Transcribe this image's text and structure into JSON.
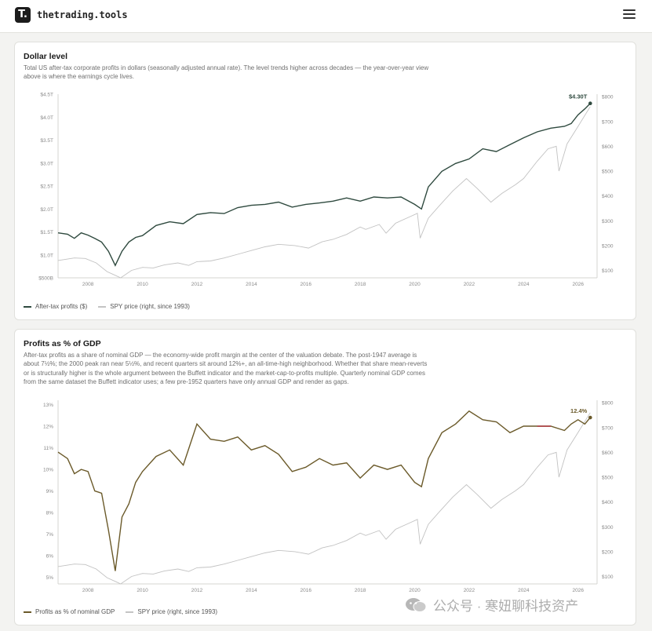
{
  "header": {
    "logo_glyph": "T.",
    "brand": "thetrading.tools",
    "menu_icon": "hamburger-menu-icon"
  },
  "colors": {
    "profits_line": "#2f4a3f",
    "gdp_line": "#6b5a2a",
    "gdp_highlight": "#b0303a",
    "spy_line": "#b8b8b8"
  },
  "chart_data": [
    {
      "type": "line",
      "title": "Dollar level",
      "subtitle": "Total US after-tax corporate profits in dollars (seasonally adjusted annual rate). The level trends higher across decades — the year-over-year view above is where the earnings cycle lives.",
      "x_ticks": [
        "2008",
        "2010",
        "2012",
        "2014",
        "2016",
        "2018",
        "2020",
        "2022",
        "2024",
        "2026"
      ],
      "xlim": [
        2006.9,
        2026.7
      ],
      "y_left_ticks": [
        "$500B",
        "$1.0T",
        "$1.5T",
        "$2.0T",
        "$2.5T",
        "$3.0T",
        "$3.5T",
        "$4.0T",
        "$4.5T"
      ],
      "y_left_values": [
        0.5,
        1.0,
        1.5,
        2.0,
        2.5,
        3.0,
        3.5,
        4.0,
        4.5
      ],
      "ylim_left": [
        0.5,
        4.5
      ],
      "y_right_ticks": [
        "$100",
        "$200",
        "$300",
        "$400",
        "$500",
        "$600",
        "$700",
        "$800"
      ],
      "y_right_values": [
        100,
        200,
        300,
        400,
        500,
        600,
        700,
        800
      ],
      "ylim_right": [
        70,
        810
      ],
      "end_label": "$4.30T",
      "legend_placement": "bottom-left",
      "series": [
        {
          "name": "After-tax profits ($)",
          "axis": "left",
          "x": [
            2006.9,
            2007.25,
            2007.5,
            2007.75,
            2008.0,
            2008.25,
            2008.5,
            2008.75,
            2009.0,
            2009.25,
            2009.5,
            2009.75,
            2010.0,
            2010.5,
            2011.0,
            2011.5,
            2012.0,
            2012.5,
            2013.0,
            2013.5,
            2014.0,
            2014.5,
            2015.0,
            2015.5,
            2016.0,
            2016.5,
            2017.0,
            2017.5,
            2018.0,
            2018.5,
            2019.0,
            2019.5,
            2020.0,
            2020.25,
            2020.5,
            2021.0,
            2021.5,
            2022.0,
            2022.5,
            2023.0,
            2023.5,
            2024.0,
            2024.5,
            2025.0,
            2025.5,
            2025.75,
            2026.0,
            2026.25,
            2026.45
          ],
          "y": [
            1.48,
            1.45,
            1.36,
            1.48,
            1.43,
            1.36,
            1.28,
            1.08,
            0.77,
            1.08,
            1.28,
            1.38,
            1.42,
            1.64,
            1.72,
            1.68,
            1.88,
            1.92,
            1.9,
            2.03,
            2.08,
            2.1,
            2.15,
            2.04,
            2.1,
            2.13,
            2.17,
            2.24,
            2.17,
            2.26,
            2.24,
            2.26,
            2.1,
            2.0,
            2.48,
            2.82,
            2.99,
            3.09,
            3.31,
            3.25,
            3.4,
            3.55,
            3.68,
            3.76,
            3.8,
            3.86,
            4.05,
            4.18,
            4.3
          ]
        },
        {
          "name": "SPY price (right, since 1993)",
          "axis": "right",
          "x": [
            2006.9,
            2007.5,
            2007.9,
            2008.3,
            2008.7,
            2009.0,
            2009.2,
            2009.6,
            2010.0,
            2010.4,
            2010.8,
            2011.3,
            2011.7,
            2012.0,
            2012.5,
            2013.0,
            2013.5,
            2014.0,
            2014.5,
            2015.0,
            2015.6,
            2016.1,
            2016.6,
            2017.0,
            2017.5,
            2018.0,
            2018.2,
            2018.7,
            2018.95,
            2019.3,
            2019.8,
            2020.1,
            2020.2,
            2020.5,
            2020.9,
            2021.4,
            2021.9,
            2022.3,
            2022.8,
            2023.2,
            2023.7,
            2024.0,
            2024.5,
            2024.9,
            2025.2,
            2025.3,
            2025.6,
            2026.0,
            2026.45
          ],
          "y": [
            140,
            150,
            148,
            130,
            95,
            80,
            70,
            100,
            112,
            110,
            122,
            130,
            120,
            135,
            138,
            150,
            165,
            180,
            195,
            205,
            200,
            190,
            215,
            225,
            245,
            275,
            265,
            285,
            250,
            290,
            315,
            330,
            230,
            310,
            360,
            420,
            470,
            430,
            375,
            410,
            445,
            470,
            540,
            590,
            600,
            500,
            610,
            680,
            760
          ]
        }
      ]
    },
    {
      "type": "line",
      "title": "Profits as % of GDP",
      "subtitle": "After-tax profits as a share of nominal GDP — the economy-wide profit margin at the center of the valuation debate. The post-1947 average is about 7½%; the 2000 peak ran near 5½%, and recent quarters sit around 12%+, an all-time-high neighborhood. Whether that share mean-reverts or is structurally higher is the whole argument between the Buffett indicator and the market-cap-to-profits multiple. Quarterly nominal GDP comes from the same dataset the Buffett indicator uses; a few pre-1952 quarters have only annual GDP and render as gaps.",
      "x_ticks": [
        "2008",
        "2010",
        "2012",
        "2014",
        "2016",
        "2018",
        "2020",
        "2022",
        "2024",
        "2026"
      ],
      "xlim": [
        2006.9,
        2026.7
      ],
      "y_left_ticks": [
        "5%",
        "6%",
        "7%",
        "8%",
        "9%",
        "10%",
        "11%",
        "12%",
        "13%"
      ],
      "y_left_values": [
        5,
        6,
        7,
        8,
        9,
        10,
        11,
        12,
        13
      ],
      "ylim_left": [
        4.7,
        13.2
      ],
      "y_right_ticks": [
        "$100",
        "$200",
        "$300",
        "$400",
        "$500",
        "$600",
        "$700",
        "$800"
      ],
      "y_right_values": [
        100,
        200,
        300,
        400,
        500,
        600,
        700,
        800
      ],
      "ylim_right": [
        70,
        810
      ],
      "end_label": "12.4%",
      "legend_placement": "bottom-left",
      "series": [
        {
          "name": "Profits as % of nominal GDP",
          "axis": "left",
          "x": [
            2006.9,
            2007.25,
            2007.5,
            2007.75,
            2008.0,
            2008.25,
            2008.5,
            2008.75,
            2009.0,
            2009.25,
            2009.5,
            2009.75,
            2010.0,
            2010.5,
            2011.0,
            2011.5,
            2012.0,
            2012.5,
            2013.0,
            2013.5,
            2014.0,
            2014.5,
            2015.0,
            2015.5,
            2016.0,
            2016.5,
            2017.0,
            2017.5,
            2018.0,
            2018.5,
            2019.0,
            2019.5,
            2020.0,
            2020.25,
            2020.5,
            2021.0,
            2021.5,
            2022.0,
            2022.5,
            2023.0,
            2023.5,
            2024.0,
            2024.5,
            2025.0,
            2025.5,
            2025.75,
            2026.0,
            2026.25,
            2026.45
          ],
          "y": [
            10.8,
            10.5,
            9.8,
            10.0,
            9.9,
            9.0,
            8.9,
            7.2,
            5.3,
            7.8,
            8.4,
            9.4,
            9.9,
            10.6,
            10.9,
            10.2,
            12.1,
            11.4,
            11.3,
            11.5,
            10.9,
            11.1,
            10.7,
            9.9,
            10.1,
            10.5,
            10.2,
            10.3,
            9.6,
            10.2,
            10.0,
            10.2,
            9.4,
            9.2,
            10.5,
            11.7,
            12.1,
            12.7,
            12.3,
            12.2,
            11.7,
            12.0,
            12.0,
            12.0,
            11.8,
            12.1,
            12.3,
            12.1,
            12.4
          ]
        },
        {
          "name": "SPY price (right, since 1993)",
          "axis": "right",
          "x": [
            2006.9,
            2007.5,
            2007.9,
            2008.3,
            2008.7,
            2009.0,
            2009.2,
            2009.6,
            2010.0,
            2010.4,
            2010.8,
            2011.3,
            2011.7,
            2012.0,
            2012.5,
            2013.0,
            2013.5,
            2014.0,
            2014.5,
            2015.0,
            2015.6,
            2016.1,
            2016.6,
            2017.0,
            2017.5,
            2018.0,
            2018.2,
            2018.7,
            2018.95,
            2019.3,
            2019.8,
            2020.1,
            2020.2,
            2020.5,
            2020.9,
            2021.4,
            2021.9,
            2022.3,
            2022.8,
            2023.2,
            2023.7,
            2024.0,
            2024.5,
            2024.9,
            2025.2,
            2025.3,
            2025.6,
            2026.0,
            2026.45
          ],
          "y": [
            140,
            150,
            148,
            130,
            95,
            80,
            70,
            100,
            112,
            110,
            122,
            130,
            120,
            135,
            138,
            150,
            165,
            180,
            195,
            205,
            200,
            190,
            215,
            225,
            245,
            275,
            265,
            285,
            250,
            290,
            315,
            330,
            230,
            310,
            360,
            420,
            470,
            430,
            375,
            410,
            445,
            470,
            540,
            590,
            600,
            500,
            610,
            680,
            760
          ]
        }
      ]
    }
  ],
  "watermark": {
    "icon": "wechat-icon",
    "text": "公众号 · 寒妞聊科技资产"
  }
}
